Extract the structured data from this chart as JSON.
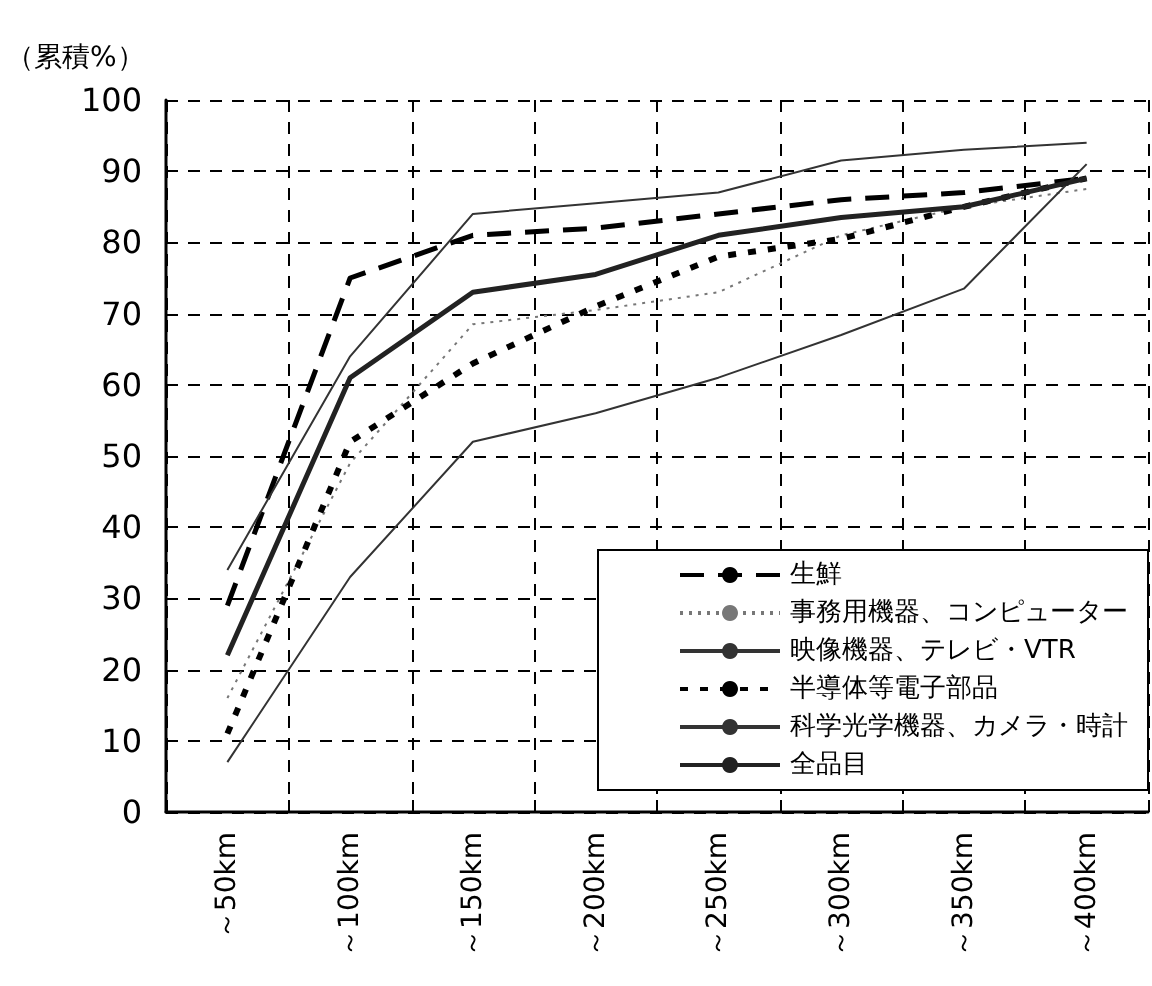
{
  "chart_data": {
    "type": "line",
    "ylabel": "（累積%）",
    "categories": [
      "～50km",
      "～100km",
      "～150km",
      "～200km",
      "～250km",
      "～300km",
      "～350km",
      "～400km"
    ],
    "series": [
      {
        "name": "生鮮",
        "color": "#000000",
        "line_style": "dashed",
        "values": [
          29,
          75,
          81,
          82,
          84,
          86,
          87,
          89
        ]
      },
      {
        "name": "事務用機器、コンピューター",
        "color": "#777777",
        "line_style": "dotted",
        "values": [
          16,
          49,
          68.5,
          70.5,
          73,
          81,
          85,
          87.5
        ]
      },
      {
        "name": "映像機器、テレビ・VTR",
        "color": "#333333",
        "line_style": "solid",
        "values": [
          34,
          64,
          84,
          85.5,
          87,
          91.5,
          93,
          94
        ]
      },
      {
        "name": "半導体等電子部品",
        "color": "#000000",
        "line_style": "dashed",
        "values": [
          11,
          52,
          63,
          71,
          78,
          80.5,
          85,
          89
        ]
      },
      {
        "name": "科学光学機器、カメラ・時計",
        "color": "#333333",
        "line_style": "solid",
        "values": [
          7,
          33,
          52,
          56,
          61,
          67,
          73.5,
          91
        ]
      },
      {
        "name": "全品目",
        "color": "#222222",
        "line_style": "solid",
        "values": [
          22,
          61,
          73,
          75.5,
          81,
          83.5,
          85,
          89
        ]
      }
    ],
    "ylim": [
      0,
      100
    ],
    "yticks": [
      0,
      10,
      20,
      30,
      40,
      50,
      60,
      70,
      80,
      90,
      100
    ],
    "grid": true,
    "legend": "bottom right",
    "marker": "none"
  }
}
